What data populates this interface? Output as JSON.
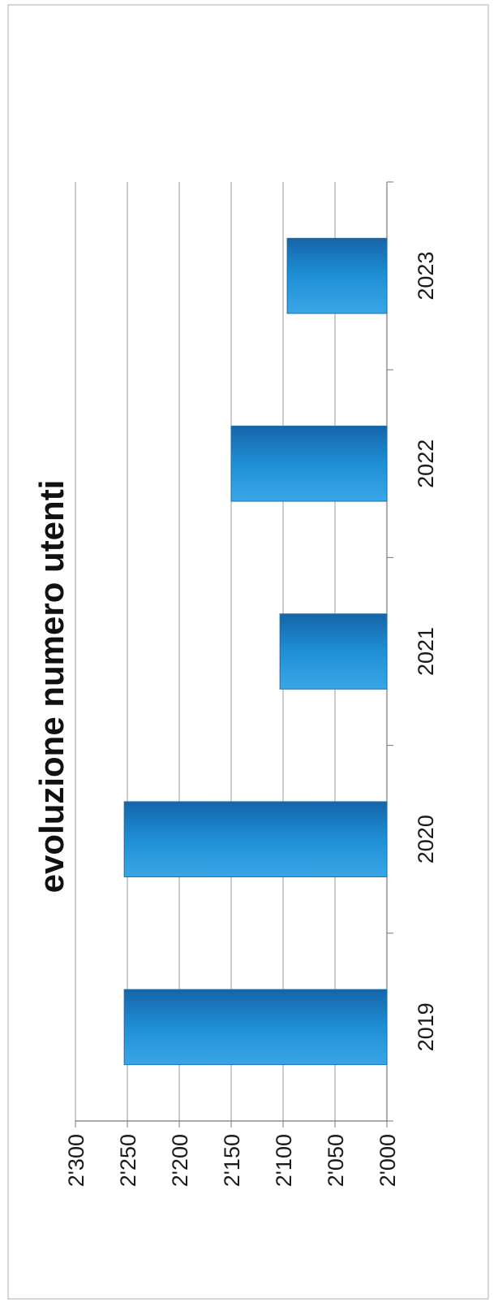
{
  "chart_data": {
    "type": "bar",
    "title": "evoluzione numero utenti",
    "categories": [
      "2019",
      "2020",
      "2021",
      "2022",
      "2023"
    ],
    "values": [
      2253,
      2253,
      2103,
      2150,
      2096
    ],
    "ylim": [
      2000,
      2300
    ],
    "yticks": [
      2000,
      2050,
      2100,
      2150,
      2200,
      2250,
      2300
    ],
    "ytick_labels": [
      "2'000",
      "2'050",
      "2'100",
      "2'150",
      "2'200",
      "2'250",
      "2'300"
    ],
    "orientation": "rotated-90-clockwise",
    "grid": true,
    "legend": "none",
    "bar_color": "#1f8fd6",
    "bar_edge_color": "#1670b0"
  }
}
